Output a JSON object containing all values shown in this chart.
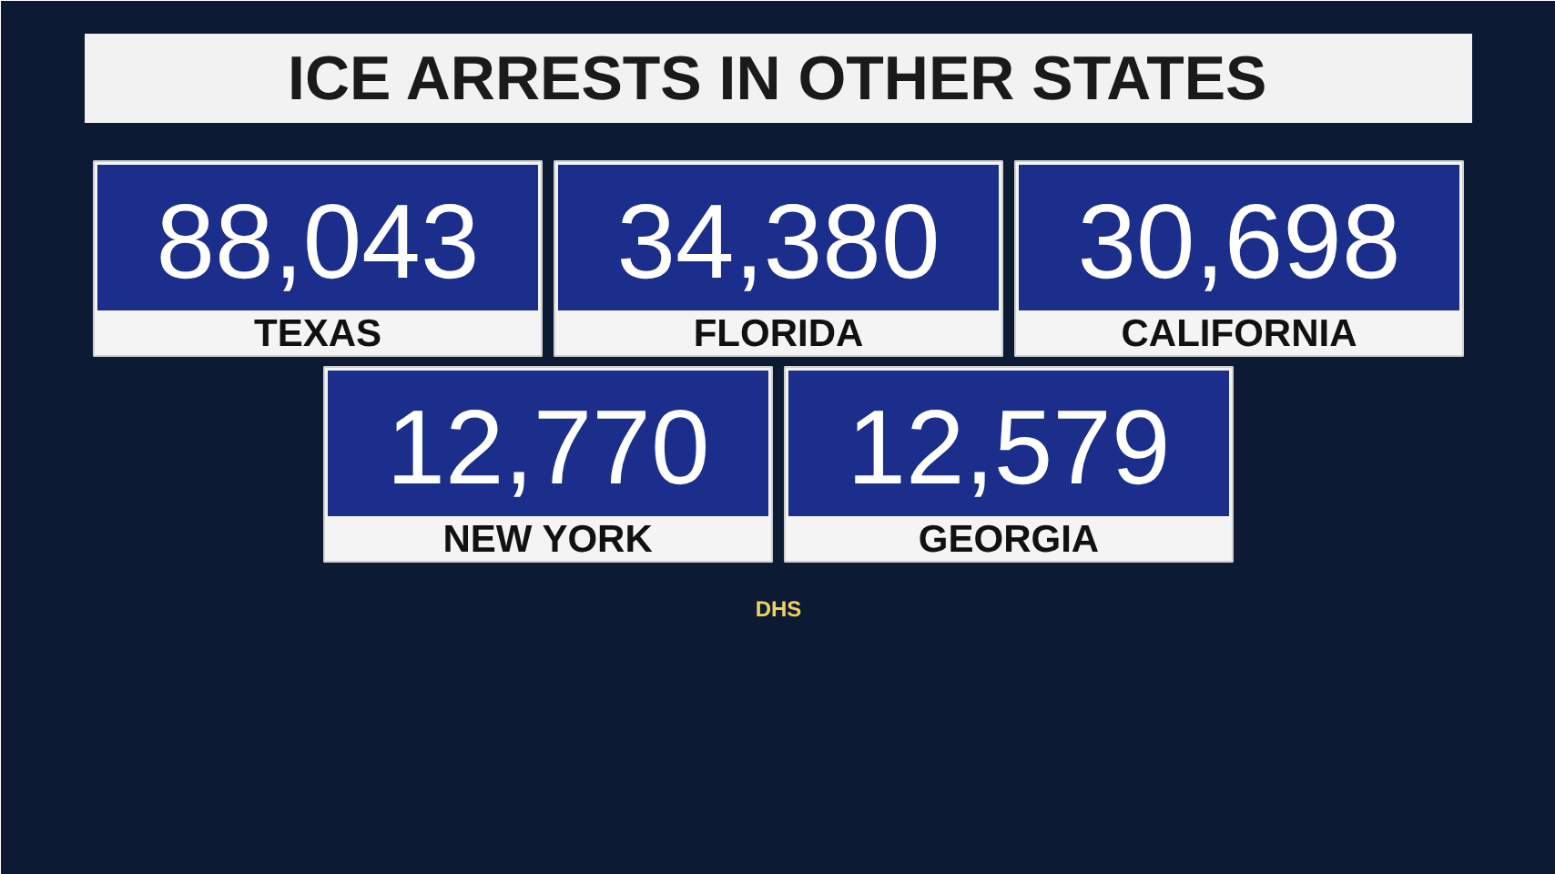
{
  "chart_data": {
    "type": "other",
    "title": "ICE ARRESTS IN OTHER STATES",
    "categories": [
      "TEXAS",
      "FLORIDA",
      "CALIFORNIA",
      "NEW YORK",
      "GEORGIA"
    ],
    "values": [
      88043,
      34380,
      30698,
      12770,
      12579
    ],
    "value_labels": [
      "88,043",
      "34,380",
      "30,698",
      "12,770",
      "12,579"
    ],
    "color": "#1c2e8c",
    "annotations": [
      "DHS"
    ]
  }
}
